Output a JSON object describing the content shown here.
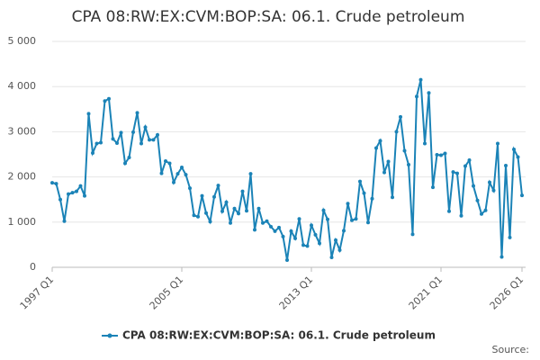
{
  "chart_data": {
    "type": "line",
    "title": "CPA 08:RW:EX:CVM:BOP:SA: 06.1. Crude petroleum",
    "source": "Source:",
    "categories": [
      "1997 Q1",
      null,
      null,
      null,
      null,
      null,
      null,
      null,
      null,
      null,
      null,
      null,
      null,
      null,
      null,
      null,
      null,
      null,
      null,
      null,
      null,
      null,
      null,
      null,
      null,
      null,
      null,
      null,
      null,
      null,
      null,
      null,
      "2005 Q1",
      null,
      null,
      null,
      null,
      null,
      null,
      null,
      null,
      null,
      null,
      null,
      null,
      null,
      null,
      null,
      null,
      null,
      null,
      null,
      null,
      null,
      null,
      null,
      null,
      null,
      null,
      null,
      null,
      null,
      null,
      null,
      "2013 Q1",
      null,
      null,
      null,
      null,
      null,
      null,
      null,
      null,
      null,
      null,
      null,
      null,
      null,
      null,
      null,
      null,
      null,
      null,
      null,
      null,
      null,
      null,
      null,
      null,
      null,
      null,
      null,
      null,
      null,
      null,
      null,
      "2021 Q1",
      null,
      null,
      null,
      null,
      null,
      null,
      null,
      null,
      null,
      null,
      null,
      null,
      null,
      null,
      null,
      null,
      null,
      null,
      null,
      "2026 Q1"
    ],
    "series": [
      {
        "name": "CPA 08:RW:EX:CVM:BOP:SA: 06.1. Crude petroleum",
        "color": "#1b83b7",
        "values": [
          1870,
          1850,
          1500,
          1020,
          1620,
          1650,
          1680,
          1800,
          1580,
          3400,
          2530,
          2740,
          2760,
          3680,
          3730,
          2840,
          2750,
          2980,
          2300,
          2430,
          2990,
          3420,
          2740,
          3100,
          2820,
          2820,
          2930,
          2080,
          2350,
          2300,
          1880,
          2070,
          2210,
          2050,
          1750,
          1150,
          1120,
          1580,
          1200,
          1010,
          1560,
          1810,
          1240,
          1440,
          980,
          1300,
          1190,
          1680,
          1250,
          2070,
          830,
          1300,
          980,
          1020,
          900,
          800,
          880,
          680,
          160,
          800,
          640,
          1070,
          490,
          470,
          930,
          720,
          530,
          1260,
          1060,
          220,
          600,
          380,
          810,
          1410,
          1040,
          1070,
          1900,
          1640,
          990,
          1520,
          2640,
          2800,
          2100,
          2340,
          1550,
          3000,
          3330,
          2580,
          2270,
          730,
          3780,
          4150,
          2740,
          3860,
          1770,
          2490,
          2480,
          2520,
          1240,
          2110,
          2080,
          1140,
          2240,
          2370,
          1800,
          1480,
          1180,
          1260,
          1880,
          1700,
          2740,
          230,
          2250,
          660,
          2610,
          2440,
          1590
        ]
      }
    ],
    "ylim": [
      0,
      5000
    ],
    "yticks": [
      0,
      {
        "value": 1000,
        "label": "1 000"
      },
      {
        "value": 2000,
        "label": "2 000"
      },
      {
        "value": 3000,
        "label": "3 000"
      },
      {
        "value": 4000,
        "label": "4 000"
      },
      {
        "value": 5000,
        "label": "5 000"
      }
    ],
    "grid": true
  }
}
